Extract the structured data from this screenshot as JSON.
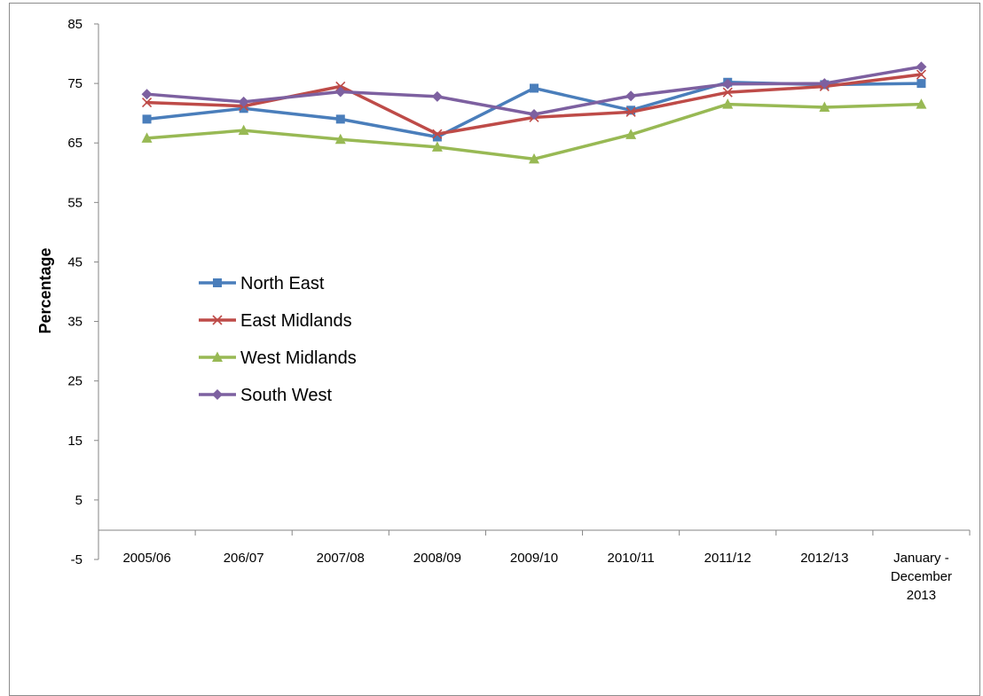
{
  "chart_data": {
    "type": "line",
    "title": "",
    "xlabel": "",
    "ylabel": "Percentage",
    "ylim": [
      -5,
      85
    ],
    "yticks": [
      85,
      75,
      65,
      55,
      45,
      35,
      25,
      15,
      5,
      -5
    ],
    "grid": false,
    "legend_position": "left",
    "categories": [
      [
        "2005/06"
      ],
      [
        "206/07"
      ],
      [
        "2007/08"
      ],
      [
        "2008/09"
      ],
      [
        "2009/10"
      ],
      [
        "2010/11"
      ],
      [
        "2011/12"
      ],
      [
        "2012/13"
      ],
      [
        "January -",
        "December",
        "2013"
      ]
    ],
    "series": [
      {
        "name": "North East",
        "color": "#4a7ebb",
        "marker": "square",
        "values": [
          69,
          70.8,
          69,
          66,
          74.2,
          70.5,
          75.2,
          74.8,
          75
        ]
      },
      {
        "name": "East Midlands",
        "color": "#be4b48",
        "marker": "x",
        "values": [
          71.8,
          71.2,
          74.5,
          66.5,
          69.3,
          70.2,
          73.5,
          74.5,
          76.5
        ]
      },
      {
        "name": "West Midlands",
        "color": "#98b954",
        "marker": "triangle",
        "values": [
          65.8,
          67.1,
          65.6,
          64.3,
          62.3,
          66.4,
          71.5,
          71,
          71.5
        ]
      },
      {
        "name": "South West",
        "color": "#7d60a0",
        "marker": "diamond",
        "values": [
          73.2,
          71.9,
          73.6,
          72.8,
          69.8,
          72.9,
          74.9,
          75,
          77.8
        ]
      }
    ]
  }
}
